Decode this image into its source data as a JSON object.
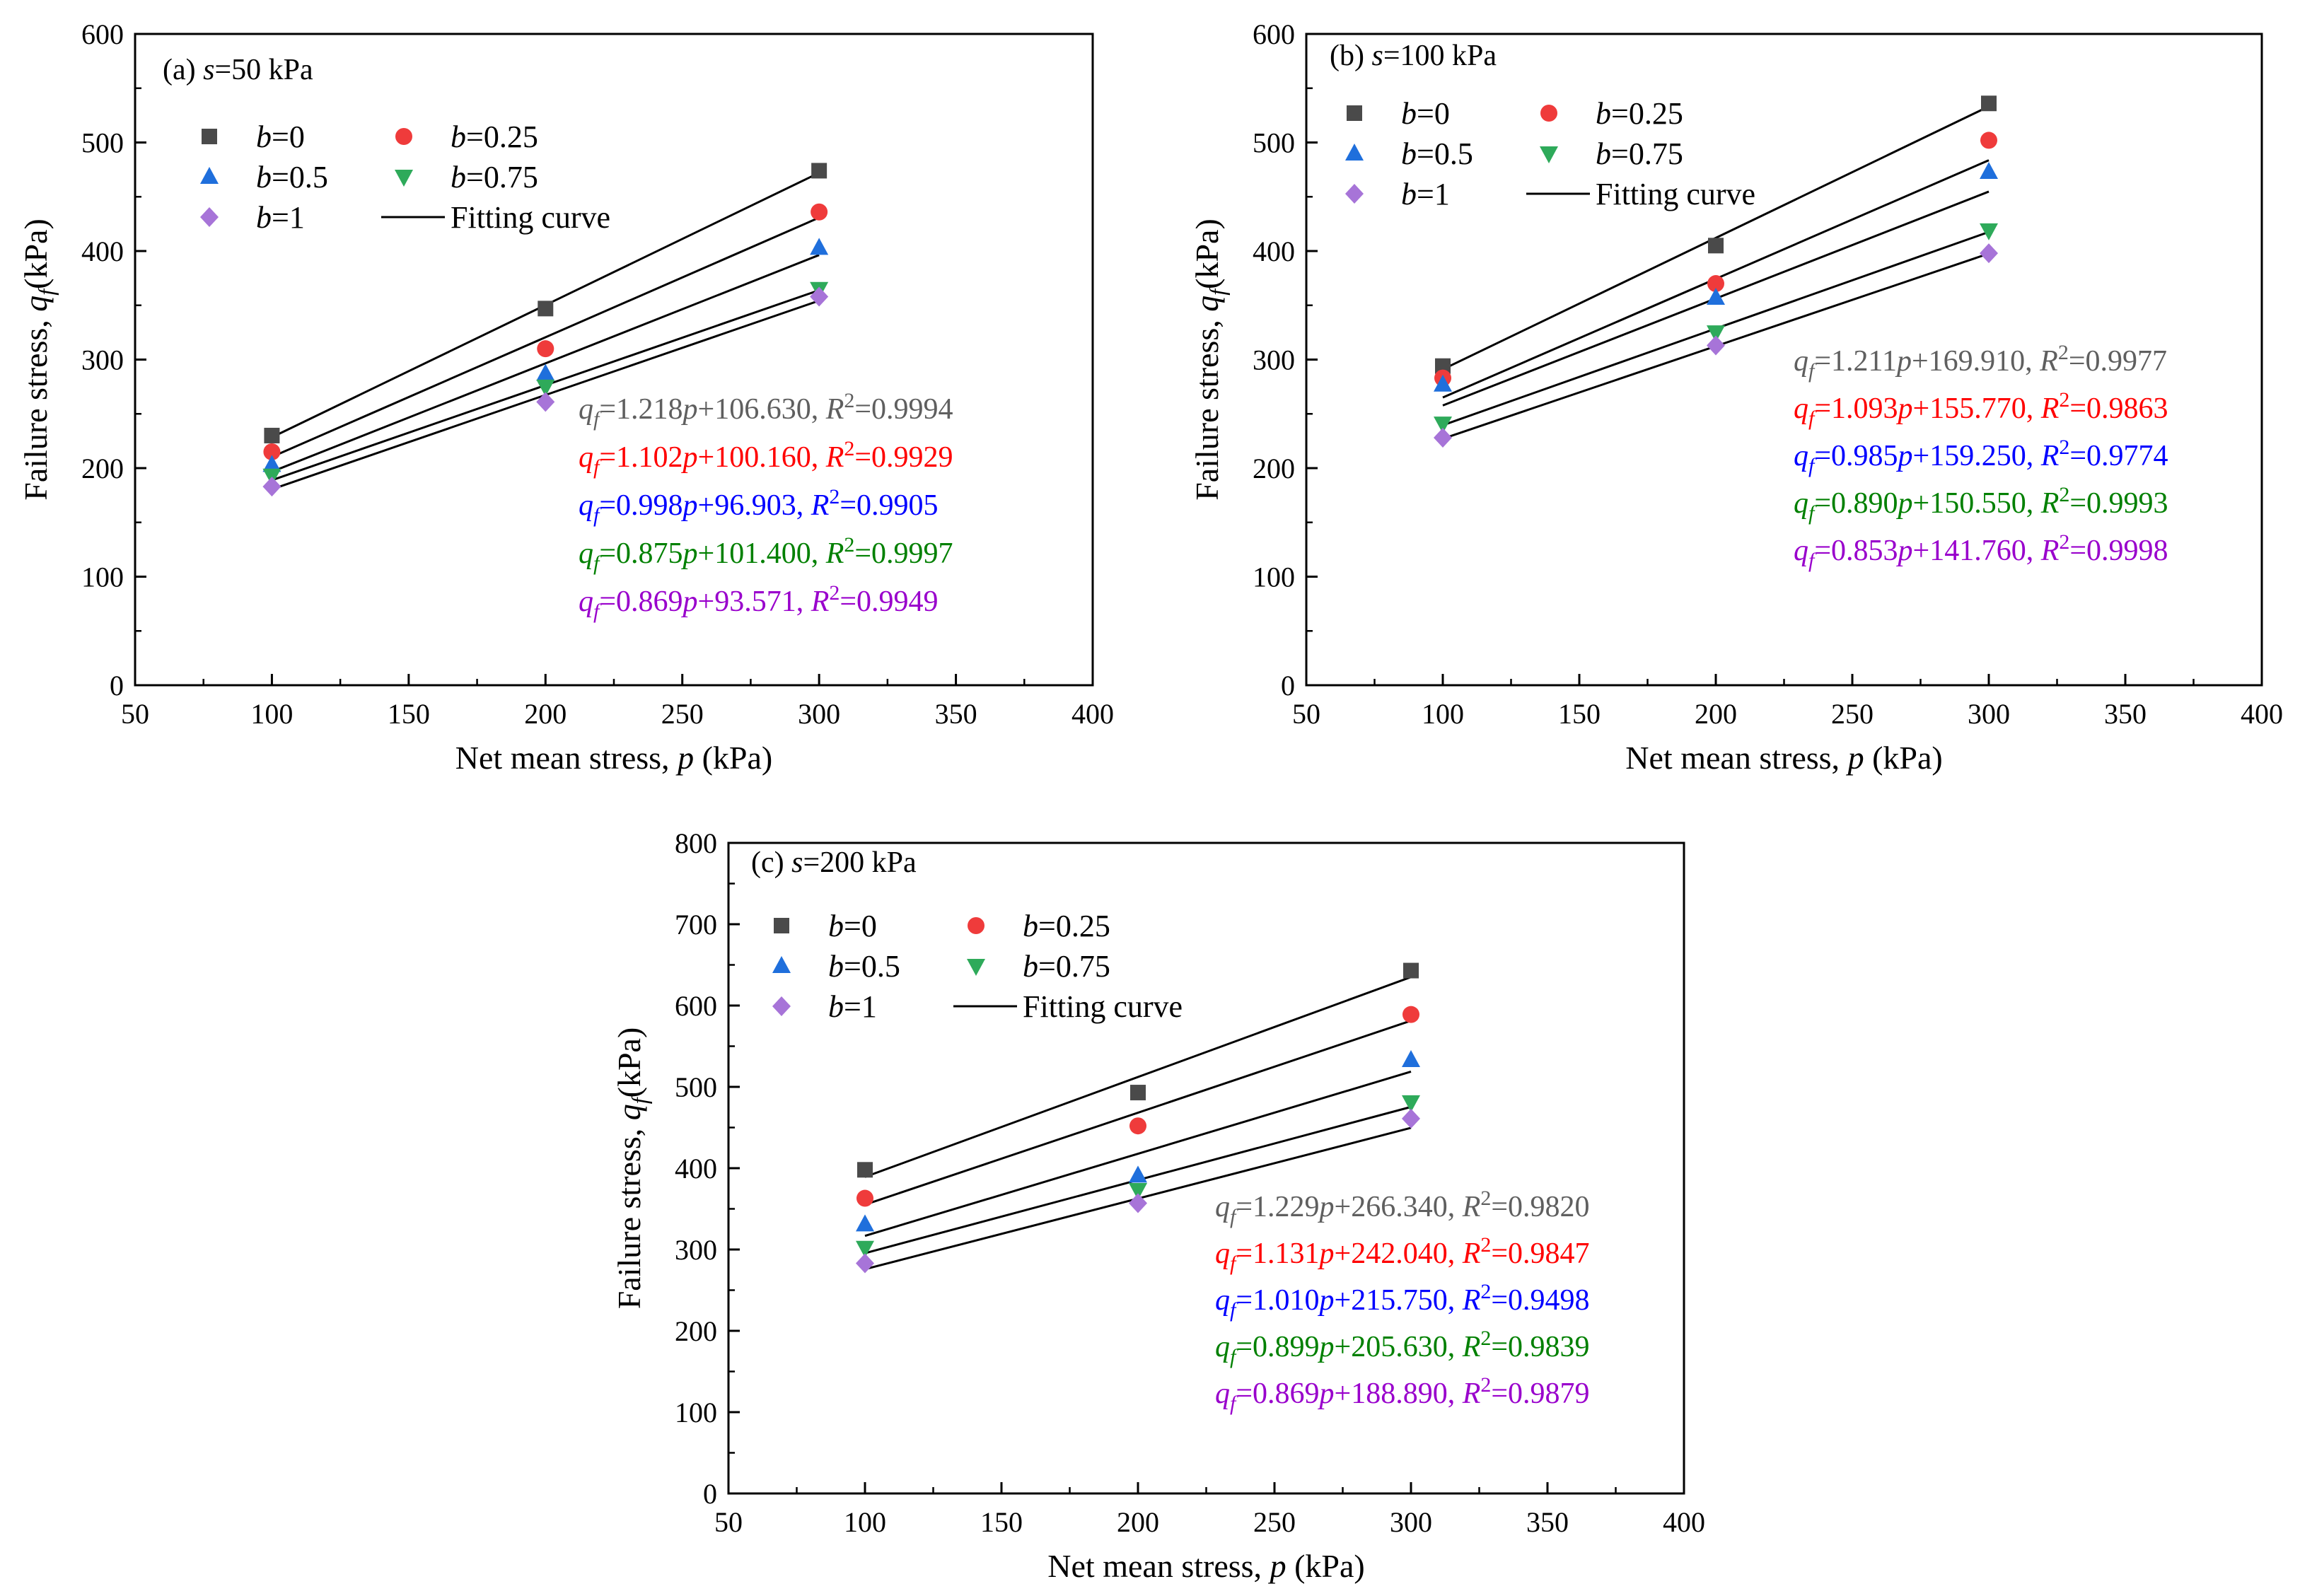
{
  "figure": {
    "text_color": "#000000",
    "fit_line_color": "#000000",
    "axes_color": "#000000"
  },
  "chart_data": [
    {
      "type": "scatter",
      "id": "a",
      "panel_label": {
        "prefix": "(a) ",
        "var": "s",
        "rest": "=50 kPa"
      },
      "xlabel": {
        "text": "Net mean stress, ",
        "var": "p",
        "unit": " (kPa)"
      },
      "ylabel": {
        "text": "Failure stress, ",
        "var": "q",
        "sub": "f",
        "unit": "(kPa)"
      },
      "xlim": [
        50,
        400
      ],
      "ylim": [
        0,
        600
      ],
      "xticks": [
        "50",
        "100",
        "150",
        "200",
        "250",
        "300",
        "350",
        "400"
      ],
      "yticks": [
        "0",
        "100",
        "200",
        "300",
        "400",
        "500",
        "600"
      ],
      "x": [
        100,
        200,
        300
      ],
      "series": [
        {
          "name": "b=0",
          "b": "0",
          "marker": "square",
          "color": "#4a4a4a",
          "values": [
            230,
            347,
            474
          ],
          "slope": 1.218,
          "intercept": 106.63,
          "eq": {
            "q": "q",
            "sub": "f",
            "mid": "=1.218",
            "p": "p",
            "rest": "+106.630, ",
            "R": "R",
            "sup": "2",
            "r2": "=0.9994"
          }
        },
        {
          "name": "b=0.25",
          "b": "0.25",
          "marker": "circle",
          "color": "#ef3b3b",
          "values": [
            215,
            310,
            436
          ],
          "slope": 1.102,
          "intercept": 100.16,
          "eq": {
            "q": "q",
            "sub": "f",
            "mid": "=1.102",
            "p": "p",
            "rest": "+100.160, ",
            "R": "R",
            "sup": "2",
            "r2": "=0.9929"
          }
        },
        {
          "name": "b=0.5",
          "b": "0.5",
          "marker": "triangle",
          "color": "#1f6fdc",
          "values": [
            203,
            287,
            403
          ],
          "slope": 0.998,
          "intercept": 96.903,
          "eq": {
            "q": "q",
            "sub": "f",
            "mid": "=0.998",
            "p": "p",
            "rest": "+96.903, ",
            "R": "R",
            "sup": "2",
            "r2": "=0.9905"
          }
        },
        {
          "name": "b=0.75",
          "b": "0.75",
          "marker": "triangle-down",
          "color": "#2eaa5a",
          "values": [
            193,
            275,
            365
          ],
          "slope": 0.875,
          "intercept": 101.4,
          "eq": {
            "q": "q",
            "sub": "f",
            "mid": "=0.875",
            "p": "p",
            "rest": "+101.400, ",
            "R": "R",
            "sup": "2",
            "r2": "=0.9997"
          }
        },
        {
          "name": "b=1",
          "b": "1",
          "marker": "diamond",
          "color": "#a774d8",
          "values": [
            183,
            261,
            358
          ],
          "slope": 0.869,
          "intercept": 93.571,
          "eq": {
            "q": "q",
            "sub": "f",
            "mid": "=0.869",
            "p": "p",
            "rest": "+93.571, ",
            "R": "R",
            "sup": "2",
            "r2": "=0.9949"
          }
        }
      ],
      "eq_colors": [
        "#5f5f5f",
        "#ff0000",
        "#0000ff",
        "#008000",
        "#9900cc"
      ],
      "fit_label": "Fitting curve"
    },
    {
      "type": "scatter",
      "id": "b",
      "panel_label": {
        "prefix": "(b) ",
        "var": "s",
        "rest": "=100 kPa"
      },
      "xlabel": {
        "text": "Net mean stress, ",
        "var": "p",
        "unit": " (kPa)"
      },
      "ylabel": {
        "text": "Failure stress, ",
        "var": "q",
        "sub": "f",
        "unit": "(kPa)"
      },
      "xlim": [
        50,
        400
      ],
      "ylim": [
        0,
        600
      ],
      "xticks": [
        "50",
        "100",
        "150",
        "200",
        "250",
        "300",
        "350",
        "400"
      ],
      "yticks": [
        "0",
        "100",
        "200",
        "300",
        "400",
        "500",
        "600"
      ],
      "x": [
        100,
        200,
        300
      ],
      "series": [
        {
          "name": "b=0",
          "b": "0",
          "marker": "square",
          "color": "#4a4a4a",
          "values": [
            294,
            405,
            536
          ],
          "slope": 1.211,
          "intercept": 169.91,
          "eq": {
            "q": "q",
            "sub": "f",
            "mid": "=1.211",
            "p": "p",
            "rest": "+169.910, ",
            "R": "R",
            "sup": "2",
            "r2": "=0.9977"
          }
        },
        {
          "name": "b=0.25",
          "b": "0.25",
          "marker": "circle",
          "color": "#ef3b3b",
          "values": [
            283,
            370,
            502
          ],
          "slope": 1.093,
          "intercept": 155.77,
          "eq": {
            "q": "q",
            "sub": "f",
            "mid": "=1.093",
            "p": "p",
            "rest": "+155.770, ",
            "R": "R",
            "sup": "2",
            "r2": "=0.9863"
          }
        },
        {
          "name": "b=0.5",
          "b": "0.5",
          "marker": "triangle",
          "color": "#1f6fdc",
          "values": [
            277,
            357,
            473
          ],
          "slope": 0.985,
          "intercept": 159.25,
          "eq": {
            "q": "q",
            "sub": "f",
            "mid": "=0.985",
            "p": "p",
            "rest": "+159.250, ",
            "R": "R",
            "sup": "2",
            "r2": "=0.9774"
          }
        },
        {
          "name": "b=0.75",
          "b": "0.75",
          "marker": "triangle-down",
          "color": "#2eaa5a",
          "values": [
            241,
            325,
            419
          ],
          "slope": 0.89,
          "intercept": 150.55,
          "eq": {
            "q": "q",
            "sub": "f",
            "mid": "=0.890",
            "p": "p",
            "rest": "+150.550, ",
            "R": "R",
            "sup": "2",
            "r2": "=0.9993"
          }
        },
        {
          "name": "b=1",
          "b": "1",
          "marker": "diamond",
          "color": "#a774d8",
          "values": [
            228,
            313,
            398
          ],
          "slope": 0.853,
          "intercept": 141.76,
          "eq": {
            "q": "q",
            "sub": "f",
            "mid": "=0.853",
            "p": "p",
            "rest": "+141.760, ",
            "R": "R",
            "sup": "2",
            "r2": "=0.9998"
          }
        }
      ],
      "eq_colors": [
        "#5f5f5f",
        "#ff0000",
        "#0000ff",
        "#008000",
        "#9900cc"
      ],
      "fit_label": "Fitting curve"
    },
    {
      "type": "scatter",
      "id": "c",
      "panel_label": {
        "prefix": "(c) ",
        "var": "s",
        "rest": "=200 kPa"
      },
      "xlabel": {
        "text": "Net mean stress, ",
        "var": "p",
        "unit": " (kPa)"
      },
      "ylabel": {
        "text": "Failure stress, ",
        "var": "q",
        "sub": "f",
        "unit": "(kPa)"
      },
      "xlim": [
        50,
        400
      ],
      "ylim": [
        0,
        800
      ],
      "xticks": [
        "50",
        "100",
        "150",
        "200",
        "250",
        "300",
        "350",
        "400"
      ],
      "yticks": [
        "0",
        "100",
        "200",
        "300",
        "400",
        "500",
        "600",
        "700",
        "800"
      ],
      "x": [
        100,
        200,
        300
      ],
      "series": [
        {
          "name": "b=0",
          "b": "0",
          "marker": "square",
          "color": "#4a4a4a",
          "values": [
            398,
            493,
            643
          ],
          "slope": 1.229,
          "intercept": 266.34,
          "eq": {
            "q": "q",
            "sub": "f",
            "mid": "=1.229",
            "p": "p",
            "rest": "+266.340, ",
            "R": "R",
            "sup": "2",
            "r2": "=0.9820"
          }
        },
        {
          "name": "b=0.25",
          "b": "0.25",
          "marker": "circle",
          "color": "#ef3b3b",
          "values": [
            363,
            452,
            589
          ],
          "slope": 1.131,
          "intercept": 242.04,
          "eq": {
            "q": "q",
            "sub": "f",
            "mid": "=1.131",
            "p": "p",
            "rest": "+242.040, ",
            "R": "R",
            "sup": "2",
            "r2": "=0.9847"
          }
        },
        {
          "name": "b=0.5",
          "b": "0.5",
          "marker": "triangle",
          "color": "#1f6fdc",
          "values": [
            331,
            391,
            533
          ],
          "slope": 1.01,
          "intercept": 215.75,
          "eq": {
            "q": "q",
            "sub": "f",
            "mid": "=1.010",
            "p": "p",
            "rest": "+215.750, ",
            "R": "R",
            "sup": "2",
            "r2": "=0.9498"
          }
        },
        {
          "name": "b=0.75",
          "b": "0.75",
          "marker": "triangle-down",
          "color": "#2eaa5a",
          "values": [
            302,
            373,
            481
          ],
          "slope": 0.899,
          "intercept": 205.63,
          "eq": {
            "q": "q",
            "sub": "f",
            "mid": "=0.899",
            "p": "p",
            "rest": "+205.630, ",
            "R": "R",
            "sup": "2",
            "r2": "=0.9839"
          }
        },
        {
          "name": "b=1",
          "b": "1",
          "marker": "diamond",
          "color": "#a774d8",
          "values": [
            283,
            357,
            461
          ],
          "slope": 0.869,
          "intercept": 188.89,
          "eq": {
            "q": "q",
            "sub": "f",
            "mid": "=0.869",
            "p": "p",
            "rest": "+188.890, ",
            "R": "R",
            "sup": "2",
            "r2": "=0.9879"
          }
        }
      ],
      "eq_colors": [
        "#5f5f5f",
        "#ff0000",
        "#0000ff",
        "#008000",
        "#9900cc"
      ],
      "fit_label": "Fitting curve"
    }
  ]
}
